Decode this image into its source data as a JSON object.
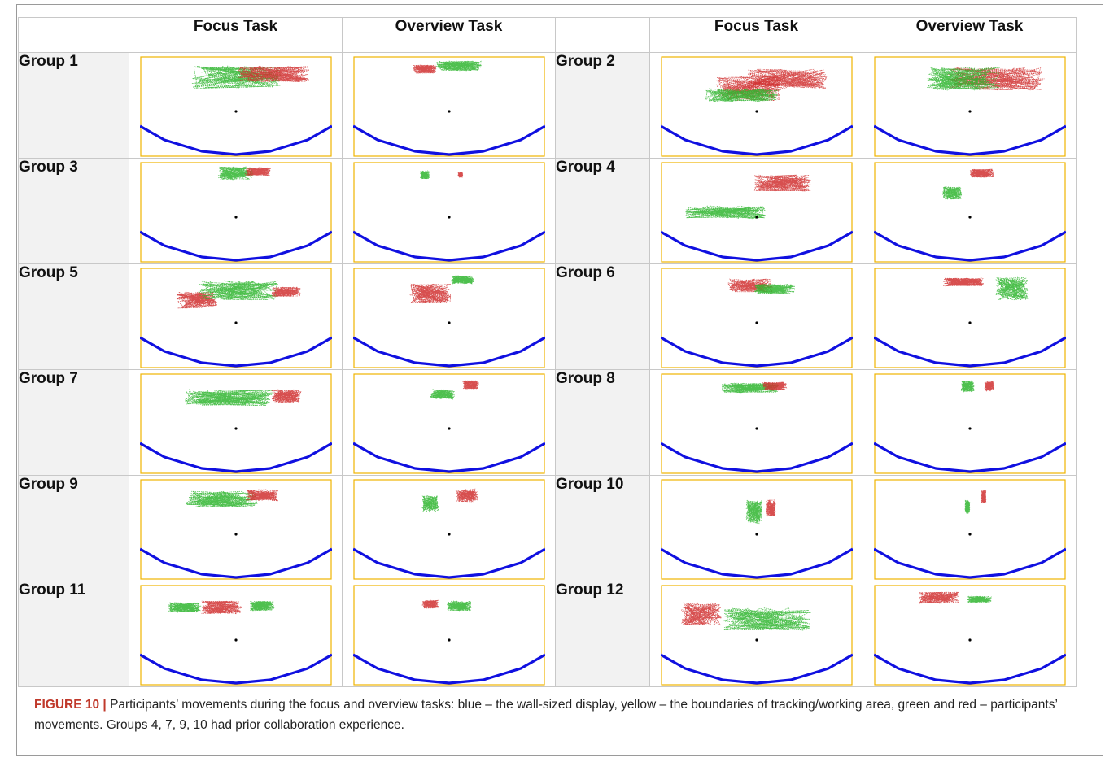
{
  "table": {
    "header": [
      "Focus Task",
      "Overview Task",
      "Focus Task",
      "Overview Task"
    ],
    "rows": [
      {
        "left": "Group 1",
        "right": "Group 2"
      },
      {
        "left": "Group 3",
        "right": "Group 4"
      },
      {
        "left": "Group 5",
        "right": "Group 6"
      },
      {
        "left": "Group 7",
        "right": "Group 8"
      },
      {
        "left": "Group 9",
        "right": "Group 10"
      },
      {
        "left": "Group 11",
        "right": "Group 12"
      }
    ]
  },
  "legend_colors": {
    "display": "#1010e0",
    "tracking_area": "#f0b400",
    "participant_a": "#2fb52f",
    "participant_b": "#d03030",
    "center_marker": "#000000"
  },
  "caption": {
    "label": "FIGURE 10 |",
    "text": "Participants’ movements during the focus and overview tasks: blue – the wall-sized display, yellow – the boundaries of tracking/working area, green and red – participants’ movements. Groups 4, 7, 9, 10 had prior collaboration experience."
  }
}
